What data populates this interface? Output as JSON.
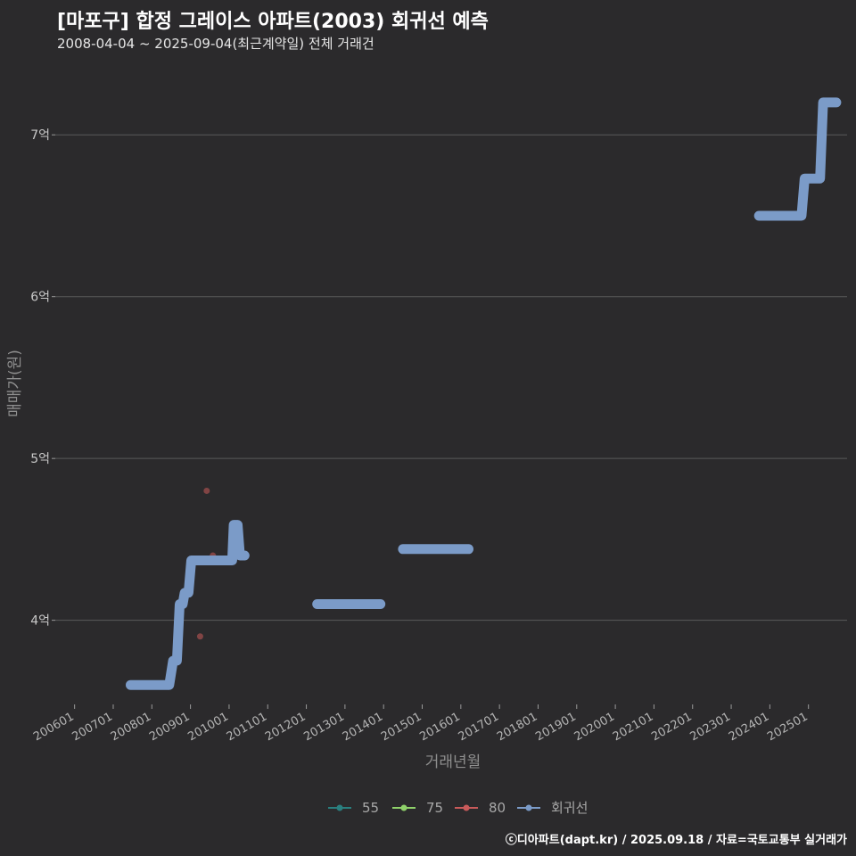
{
  "title": "[마포구] 합정 그레이스 아파트(2003) 회귀선 예측",
  "subtitle": "2008-04-04 ~ 2025-09-04(최근계약일) 전체 거래건",
  "footer": "ⓒ디아파트(dapt.kr) / 2025.09.18 / 자료=국토교통부 실거래가",
  "colors": {
    "background": "#2b2a2c",
    "grid": "#5a5a5a",
    "regression": "#7b9bc8",
    "s55": "#2a7f7f",
    "s75": "#8fd16a",
    "s80": "#c85a5a"
  },
  "chart_data": {
    "type": "line",
    "xlabel": "거래년월",
    "ylabel": "매매가(원)",
    "xlim": [
      2005.5,
      2026.0
    ],
    "ylim": [
      3.48,
      7.42
    ],
    "y_ticks": [
      {
        "value": 4,
        "label": "4억"
      },
      {
        "value": 5,
        "label": "5억"
      },
      {
        "value": 6,
        "label": "6억"
      },
      {
        "value": 7,
        "label": "7억"
      }
    ],
    "x_ticks": [
      {
        "value": 2006,
        "label": "200601"
      },
      {
        "value": 2007,
        "label": "200701"
      },
      {
        "value": 2008,
        "label": "200801"
      },
      {
        "value": 2009,
        "label": "200901"
      },
      {
        "value": 2010,
        "label": "201001"
      },
      {
        "value": 2011,
        "label": "201101"
      },
      {
        "value": 2012,
        "label": "201201"
      },
      {
        "value": 2013,
        "label": "201301"
      },
      {
        "value": 2014,
        "label": "201401"
      },
      {
        "value": 2015,
        "label": "201501"
      },
      {
        "value": 2016,
        "label": "201601"
      },
      {
        "value": 2017,
        "label": "201701"
      },
      {
        "value": 2018,
        "label": "201801"
      },
      {
        "value": 2019,
        "label": "201901"
      },
      {
        "value": 2020,
        "label": "202001"
      },
      {
        "value": 2021,
        "label": "202101"
      },
      {
        "value": 2022,
        "label": "202201"
      },
      {
        "value": 2023,
        "label": "202301"
      },
      {
        "value": 2024,
        "label": "202401"
      },
      {
        "value": 2025,
        "label": "202501"
      }
    ],
    "series": [
      {
        "name": "55",
        "color": "#2a7f7f",
        "points": []
      },
      {
        "name": "75",
        "color": "#8fd16a",
        "points": []
      },
      {
        "name": "80",
        "color": "#c85a5a",
        "points": [
          {
            "x": 2009.25,
            "y": 3.9
          },
          {
            "x": 2009.42,
            "y": 4.8
          },
          {
            "x": 2009.58,
            "y": 4.4
          }
        ]
      },
      {
        "name": "회귀선",
        "color": "#7b9bc8",
        "segments": [
          [
            {
              "x": 2007.45,
              "y": 3.6
            },
            {
              "x": 2008.45,
              "y": 3.6
            },
            {
              "x": 2008.55,
              "y": 3.75
            },
            {
              "x": 2008.65,
              "y": 3.75
            },
            {
              "x": 2008.72,
              "y": 4.1
            },
            {
              "x": 2008.8,
              "y": 4.1
            },
            {
              "x": 2008.85,
              "y": 4.17
            },
            {
              "x": 2008.95,
              "y": 4.17
            },
            {
              "x": 2009.02,
              "y": 4.37
            },
            {
              "x": 2010.08,
              "y": 4.37
            },
            {
              "x": 2010.12,
              "y": 4.59
            },
            {
              "x": 2010.22,
              "y": 4.59
            },
            {
              "x": 2010.28,
              "y": 4.4
            },
            {
              "x": 2010.4,
              "y": 4.4
            }
          ],
          [
            {
              "x": 2012.28,
              "y": 4.1
            },
            {
              "x": 2013.92,
              "y": 4.1
            }
          ],
          [
            {
              "x": 2014.5,
              "y": 4.44
            },
            {
              "x": 2016.2,
              "y": 4.44
            }
          ],
          [
            {
              "x": 2023.72,
              "y": 6.5
            },
            {
              "x": 2024.82,
              "y": 6.5
            },
            {
              "x": 2024.9,
              "y": 6.73
            },
            {
              "x": 2025.3,
              "y": 6.73
            },
            {
              "x": 2025.38,
              "y": 7.2
            },
            {
              "x": 2025.72,
              "y": 7.2
            }
          ]
        ]
      }
    ],
    "legend": [
      "55",
      "75",
      "80",
      "회귀선"
    ],
    "legend_position": "bottom"
  }
}
